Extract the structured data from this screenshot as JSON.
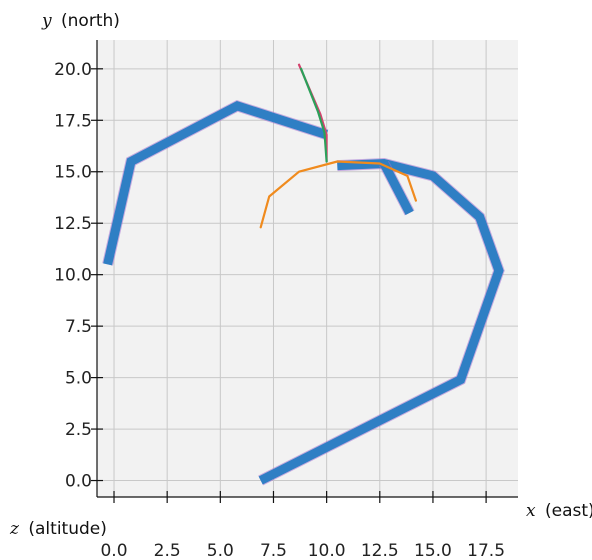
{
  "chart_data": {
    "type": "line",
    "title": "",
    "xlabel_var": "x",
    "xlabel_unit": "(east)",
    "ylabel_var": "y",
    "ylabel_unit": "(north)",
    "zlabel_var": "z",
    "zlabel_unit": "(altitude)",
    "xlim": [
      -0.8,
      19.0
    ],
    "ylim": [
      -0.8,
      21.4
    ],
    "grid": true,
    "x_ticks": [
      {
        "value": 0.0,
        "label": "0.0"
      },
      {
        "value": 2.5,
        "label": "2.5"
      },
      {
        "value": 5.0,
        "label": "5.0"
      },
      {
        "value": 7.5,
        "label": "7.5"
      },
      {
        "value": 10.0,
        "label": "10.0"
      },
      {
        "value": 12.5,
        "label": "12.5"
      },
      {
        "value": 15.0,
        "label": "15.0"
      },
      {
        "value": 17.5,
        "label": "17.5"
      }
    ],
    "y_ticks": [
      {
        "value": 0.0,
        "label": "0.0"
      },
      {
        "value": 2.5,
        "label": "2.5"
      },
      {
        "value": 5.0,
        "label": "5.0"
      },
      {
        "value": 7.5,
        "label": "7.5"
      },
      {
        "value": 10.0,
        "label": "10.0"
      },
      {
        "value": 12.5,
        "label": "12.5"
      },
      {
        "value": 15.0,
        "label": "15.0"
      },
      {
        "value": 17.5,
        "label": "17.5"
      },
      {
        "value": 20.0,
        "label": "20.0"
      }
    ],
    "series": [
      {
        "style": "thick",
        "color": "#2f7fc4",
        "x": [
          -0.3,
          0.8,
          5.8,
          10.0
        ],
        "y": [
          10.5,
          15.5,
          18.2,
          16.8
        ]
      },
      {
        "style": "thick",
        "color": "#2f7fc4",
        "x": [
          6.9,
          16.3,
          18.1,
          17.2,
          15.0,
          12.7,
          10.5
        ],
        "y": [
          0.0,
          4.9,
          10.2,
          12.8,
          14.8,
          15.4,
          15.3
        ]
      },
      {
        "style": "thick",
        "color": "#2f7fc4",
        "x": [
          12.7,
          13.9
        ],
        "y": [
          15.4,
          13.0
        ]
      },
      {
        "style": "thin",
        "color": "#d4426e",
        "x": [
          8.7,
          9.7,
          10.0,
          10.0
        ],
        "y": [
          20.2,
          17.8,
          16.8,
          15.5
        ]
      },
      {
        "style": "thin",
        "color": "#2ca05a",
        "x": [
          8.8,
          9.6,
          9.9,
          10.0
        ],
        "y": [
          20.0,
          17.9,
          16.9,
          15.5
        ]
      },
      {
        "style": "thin",
        "color": "#f08b1e",
        "x": [
          6.9,
          7.3,
          8.7,
          10.5,
          12.5,
          13.8,
          14.2
        ],
        "y": [
          12.3,
          13.8,
          15.0,
          15.5,
          15.4,
          14.8,
          13.6
        ]
      }
    ]
  }
}
